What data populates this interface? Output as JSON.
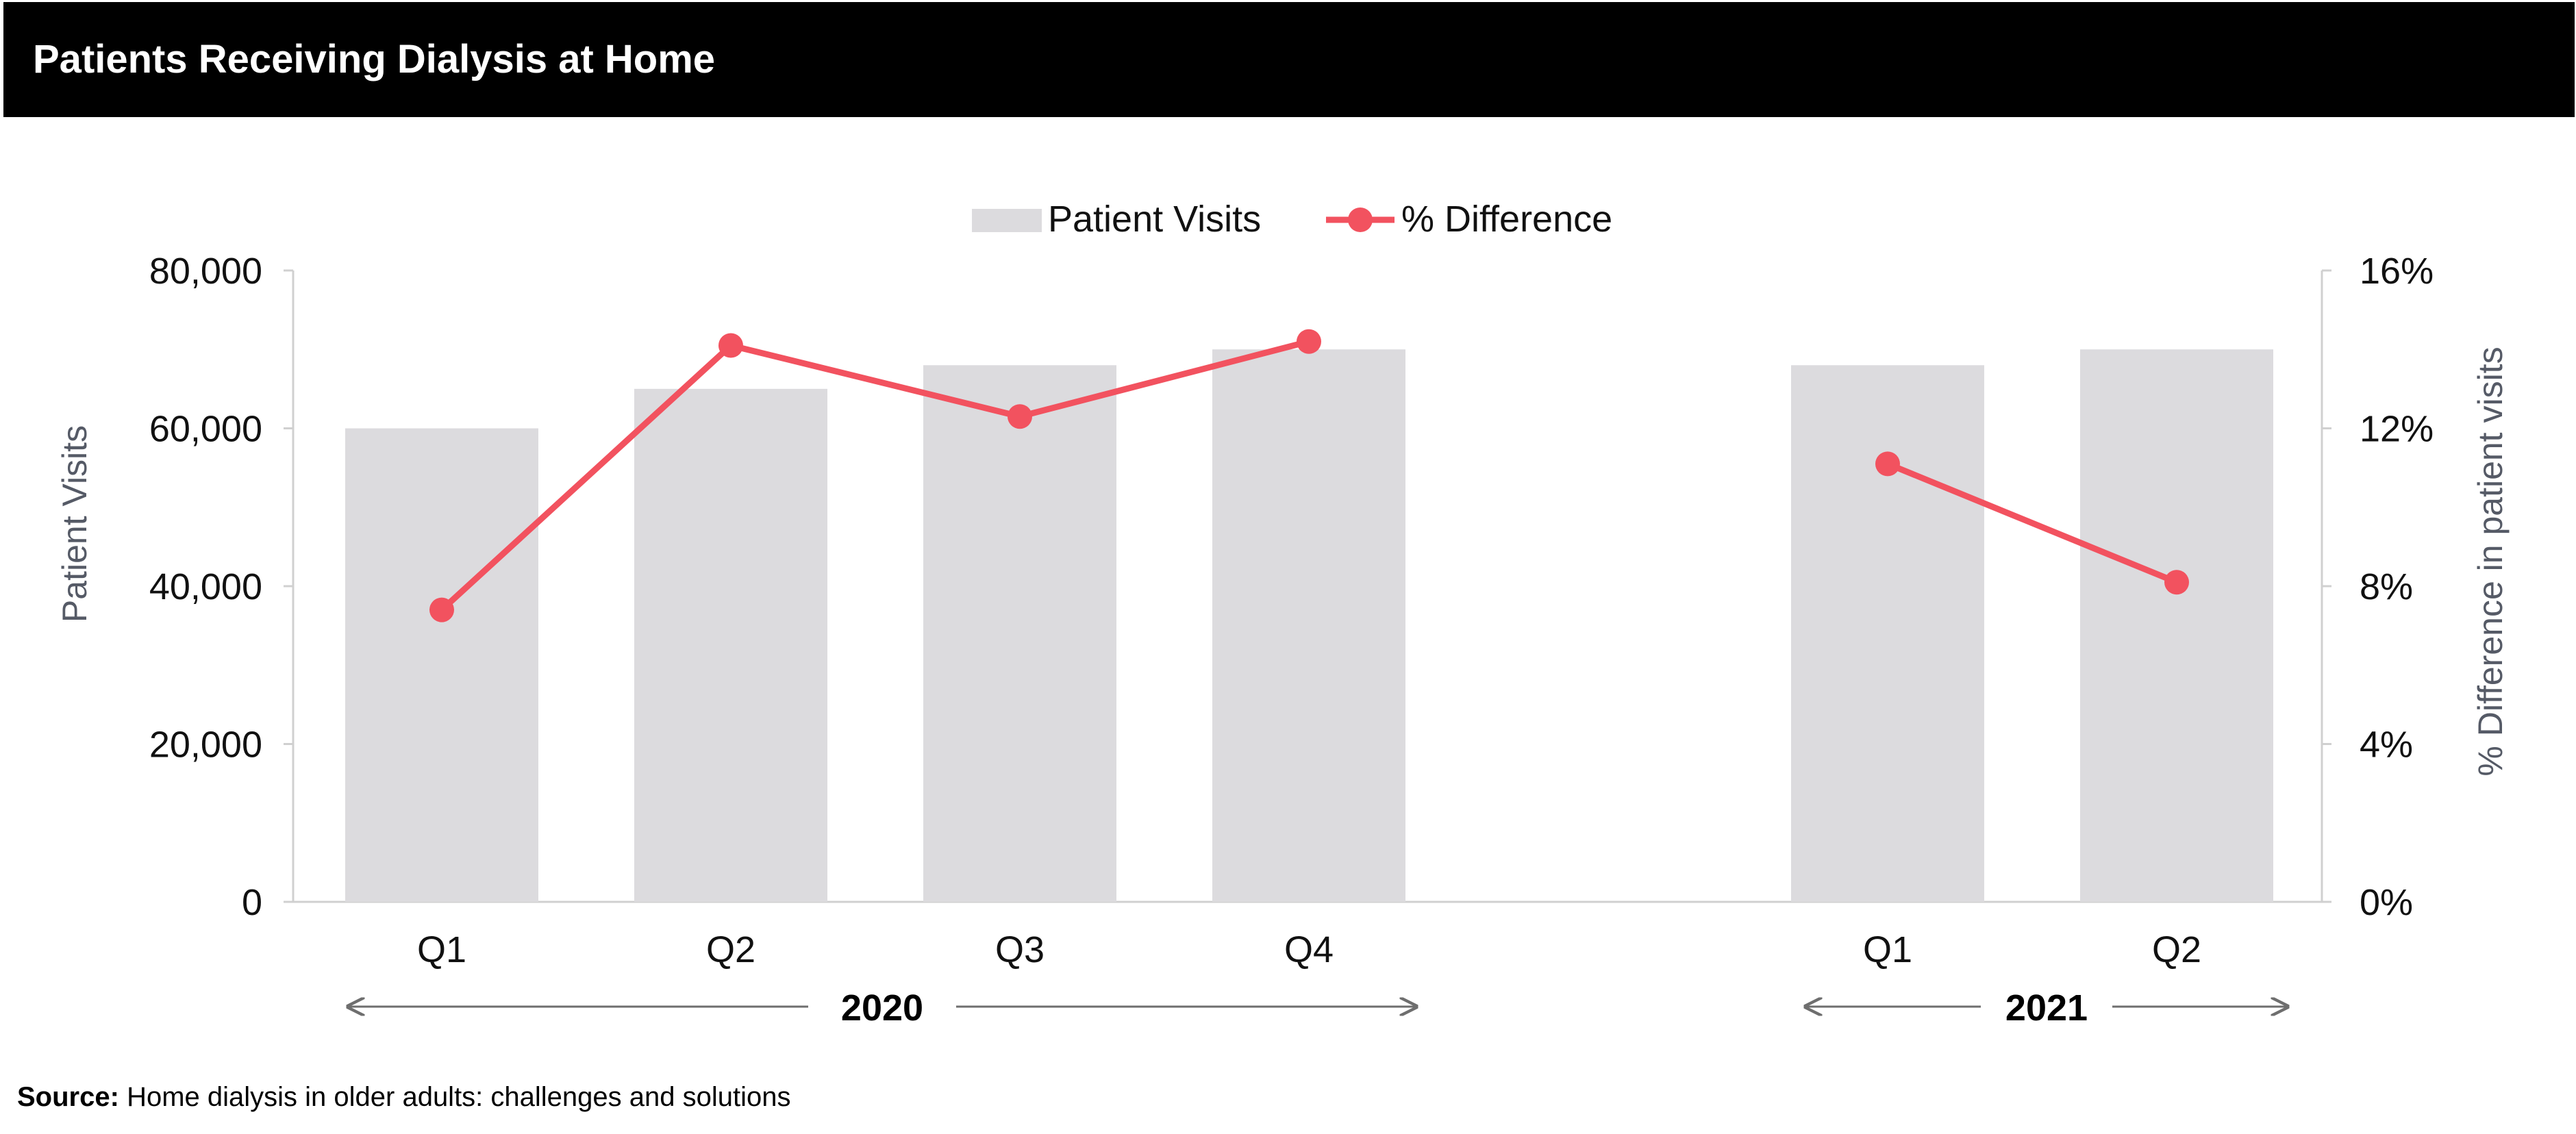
{
  "header": {
    "title": "Patients Receiving Dialysis at Home"
  },
  "source": {
    "label": "Source:",
    "text": "Home dialysis in older adults: challenges and solutions"
  },
  "chart_data": {
    "type": "bar",
    "categories": [
      "Q1",
      "Q2",
      "Q3",
      "Q4",
      "Q1",
      "Q2"
    ],
    "groups": [
      {
        "label": "2020",
        "categories": [
          "Q1",
          "Q2",
          "Q3",
          "Q4"
        ]
      },
      {
        "label": "2021",
        "categories": [
          "Q1",
          "Q2"
        ]
      }
    ],
    "series": [
      {
        "name": "Patient Visits",
        "type": "bar",
        "axis": "left",
        "values": [
          60000,
          65000,
          68000,
          70000,
          68000,
          70000
        ],
        "color": "#dcdbde"
      },
      {
        "name": "% Difference",
        "type": "line",
        "axis": "right",
        "segments": [
          [
            0,
            1,
            2,
            3
          ],
          [
            4,
            5
          ]
        ],
        "values": [
          7.4,
          14.1,
          12.3,
          14.2,
          11.1,
          8.1
        ],
        "color": "#f2525f"
      }
    ],
    "ylabel": "Patient Visits",
    "y2label": "% Difference in patient visits",
    "ylim": [
      0,
      80000
    ],
    "y2lim": [
      0,
      16
    ],
    "yticks": [
      "0",
      "20,000",
      "40,000",
      "60,000",
      "80,000"
    ],
    "y2ticks": [
      "0%",
      "4%",
      "8%",
      "12%",
      "16%"
    ],
    "legend": "top-center",
    "grid": false
  }
}
